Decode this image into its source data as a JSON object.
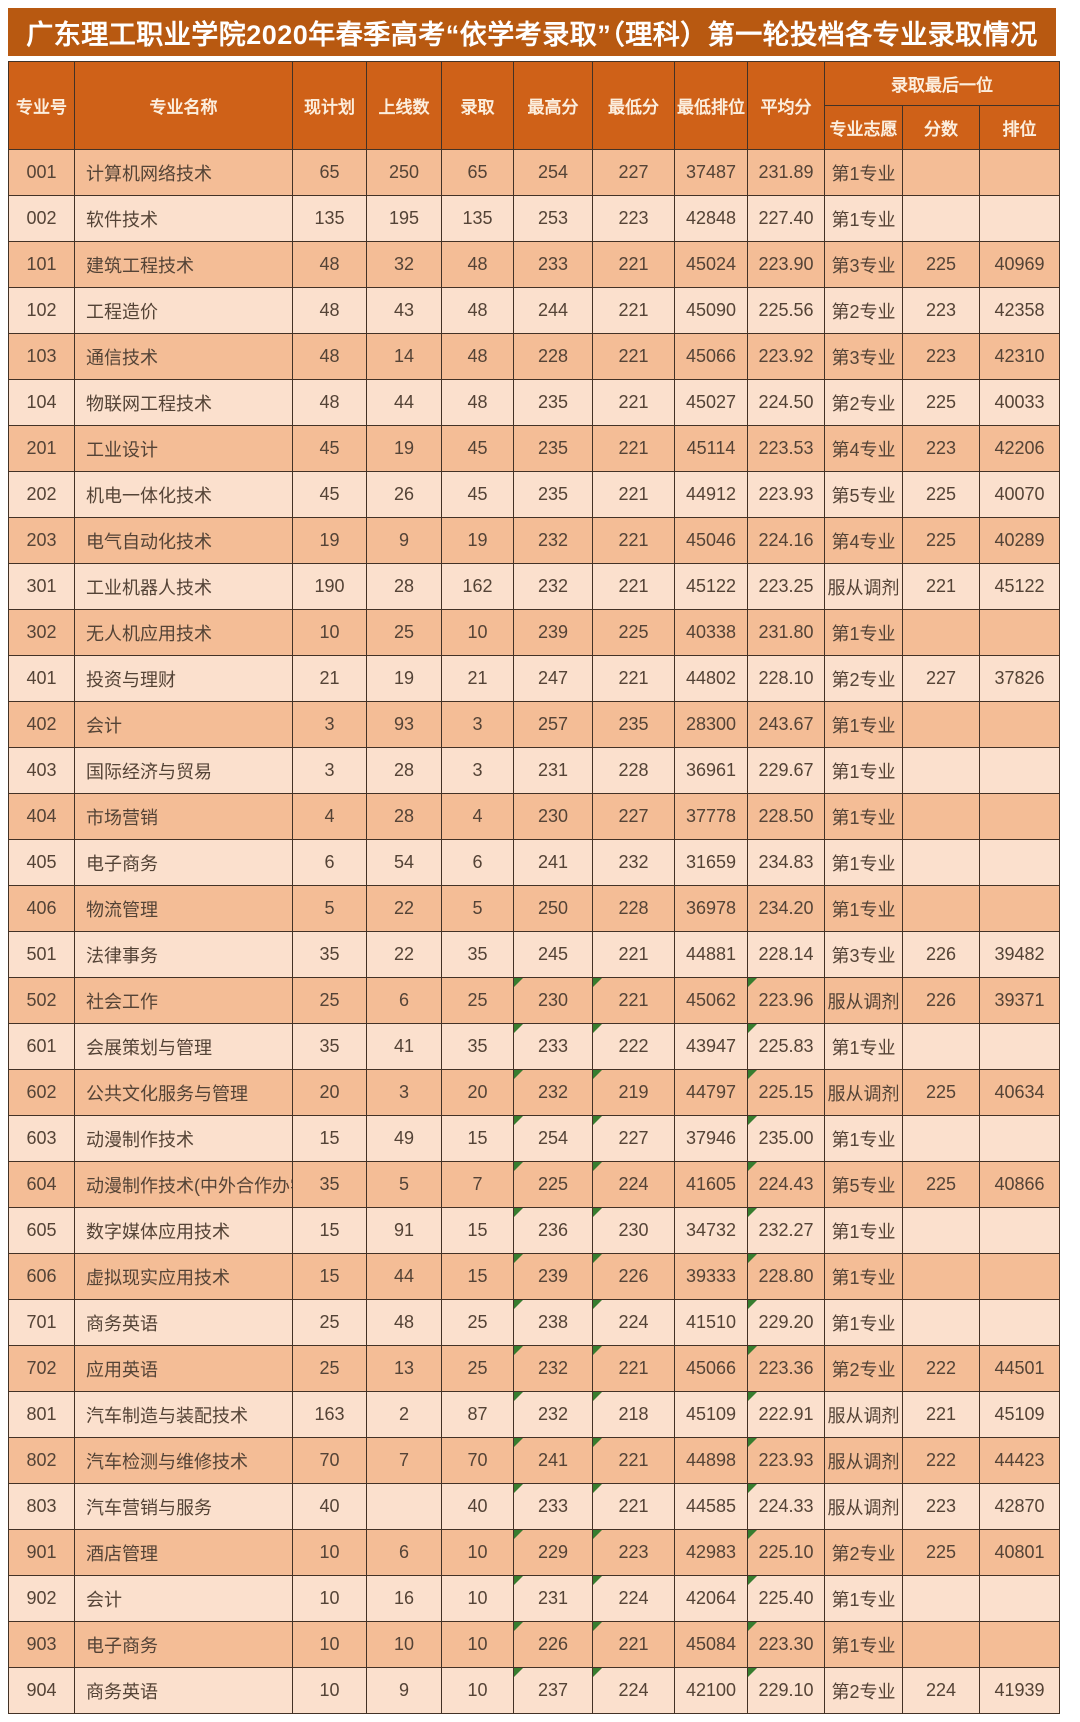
{
  "title": "广东理工职业学院2020年春季高考“依学考录取”（理科）第一轮投档各专业录取情况",
  "colors": {
    "title_bg": "#b85911",
    "header_bg": "#cf6118",
    "header_text": "#fceedd",
    "row_dark": "#f4bd96",
    "row_light": "#fbe0cd",
    "border": "#433226",
    "cell_text": "#544336",
    "error_marker_green": "#377d2f"
  },
  "table": {
    "header_row1": [
      "专业号",
      "专业名称",
      "现计划",
      "上线数",
      "录取",
      "最高分",
      "最低分",
      "最低排位",
      "平均分"
    ],
    "group_header": "录取最后一位",
    "header_row2": [
      "专业志愿",
      "分数",
      "排位"
    ],
    "col_keys": [
      "major-code",
      "major-name",
      "planned",
      "above-line",
      "admitted",
      "max-score",
      "min-score",
      "min-rank",
      "avg-score",
      "last-preference",
      "last-score",
      "last-rank"
    ],
    "marker_cols": [
      5,
      6,
      8
    ],
    "rows": [
      {
        "c": [
          "001",
          "计算机网络技术",
          "65",
          "250",
          "65",
          "254",
          "227",
          "37487",
          "231.89",
          "第1专业",
          "",
          ""
        ],
        "m": 0
      },
      {
        "c": [
          "002",
          "软件技术",
          "135",
          "195",
          "135",
          "253",
          "223",
          "42848",
          "227.40",
          "第1专业",
          "",
          ""
        ],
        "m": 0
      },
      {
        "c": [
          "101",
          "建筑工程技术",
          "48",
          "32",
          "48",
          "233",
          "221",
          "45024",
          "223.90",
          "第3专业",
          "225",
          "40969"
        ],
        "m": 0
      },
      {
        "c": [
          "102",
          "工程造价",
          "48",
          "43",
          "48",
          "244",
          "221",
          "45090",
          "225.56",
          "第2专业",
          "223",
          "42358"
        ],
        "m": 0
      },
      {
        "c": [
          "103",
          "通信技术",
          "48",
          "14",
          "48",
          "228",
          "221",
          "45066",
          "223.92",
          "第3专业",
          "223",
          "42310"
        ],
        "m": 0
      },
      {
        "c": [
          "104",
          "物联网工程技术",
          "48",
          "44",
          "48",
          "235",
          "221",
          "45027",
          "224.50",
          "第2专业",
          "225",
          "40033"
        ],
        "m": 0
      },
      {
        "c": [
          "201",
          "工业设计",
          "45",
          "19",
          "45",
          "235",
          "221",
          "45114",
          "223.53",
          "第4专业",
          "223",
          "42206"
        ],
        "m": 0
      },
      {
        "c": [
          "202",
          "机电一体化技术",
          "45",
          "26",
          "45",
          "235",
          "221",
          "44912",
          "223.93",
          "第5专业",
          "225",
          "40070"
        ],
        "m": 0
      },
      {
        "c": [
          "203",
          "电气自动化技术",
          "19",
          "9",
          "19",
          "232",
          "221",
          "45046",
          "224.16",
          "第4专业",
          "225",
          "40289"
        ],
        "m": 0
      },
      {
        "c": [
          "301",
          "工业机器人技术",
          "190",
          "28",
          "162",
          "232",
          "221",
          "45122",
          "223.25",
          "服从调剂",
          "221",
          "45122"
        ],
        "m": 0
      },
      {
        "c": [
          "302",
          "无人机应用技术",
          "10",
          "25",
          "10",
          "239",
          "225",
          "40338",
          "231.80",
          "第1专业",
          "",
          ""
        ],
        "m": 0
      },
      {
        "c": [
          "401",
          "投资与理财",
          "21",
          "19",
          "21",
          "247",
          "221",
          "44802",
          "228.10",
          "第2专业",
          "227",
          "37826"
        ],
        "m": 0
      },
      {
        "c": [
          "402",
          "会计",
          "3",
          "93",
          "3",
          "257",
          "235",
          "28300",
          "243.67",
          "第1专业",
          "",
          ""
        ],
        "m": 0
      },
      {
        "c": [
          "403",
          "国际经济与贸易",
          "3",
          "28",
          "3",
          "231",
          "228",
          "36961",
          "229.67",
          "第1专业",
          "",
          ""
        ],
        "m": 0
      },
      {
        "c": [
          "404",
          "市场营销",
          "4",
          "28",
          "4",
          "230",
          "227",
          "37778",
          "228.50",
          "第1专业",
          "",
          ""
        ],
        "m": 0
      },
      {
        "c": [
          "405",
          "电子商务",
          "6",
          "54",
          "6",
          "241",
          "232",
          "31659",
          "234.83",
          "第1专业",
          "",
          ""
        ],
        "m": 0
      },
      {
        "c": [
          "406",
          "物流管理",
          "5",
          "22",
          "5",
          "250",
          "228",
          "36978",
          "234.20",
          "第1专业",
          "",
          ""
        ],
        "m": 0
      },
      {
        "c": [
          "501",
          "法律事务",
          "35",
          "22",
          "35",
          "245",
          "221",
          "44881",
          "228.14",
          "第3专业",
          "226",
          "39482"
        ],
        "m": 0
      },
      {
        "c": [
          "502",
          "社会工作",
          "25",
          "6",
          "25",
          "230",
          "221",
          "45062",
          "223.96",
          "服从调剂",
          "226",
          "39371"
        ],
        "m": 1
      },
      {
        "c": [
          "601",
          "会展策划与管理",
          "35",
          "41",
          "35",
          "233",
          "222",
          "43947",
          "225.83",
          "第1专业",
          "",
          ""
        ],
        "m": 1
      },
      {
        "c": [
          "602",
          "公共文化服务与管理",
          "20",
          "3",
          "20",
          "232",
          "219",
          "44797",
          "225.15",
          "服从调剂",
          "225",
          "40634"
        ],
        "m": 1
      },
      {
        "c": [
          "603",
          "动漫制作技术",
          "15",
          "49",
          "15",
          "254",
          "227",
          "37946",
          "235.00",
          "第1专业",
          "",
          ""
        ],
        "m": 1
      },
      {
        "c": [
          "604",
          "动漫制作技术(中外合作办学)",
          "35",
          "5",
          "7",
          "225",
          "224",
          "41605",
          "224.43",
          "第5专业",
          "225",
          "40866"
        ],
        "m": 1
      },
      {
        "c": [
          "605",
          "数字媒体应用技术",
          "15",
          "91",
          "15",
          "236",
          "230",
          "34732",
          "232.27",
          "第1专业",
          "",
          ""
        ],
        "m": 1
      },
      {
        "c": [
          "606",
          "虚拟现实应用技术",
          "15",
          "44",
          "15",
          "239",
          "226",
          "39333",
          "228.80",
          "第1专业",
          "",
          ""
        ],
        "m": 1
      },
      {
        "c": [
          "701",
          "商务英语",
          "25",
          "48",
          "25",
          "238",
          "224",
          "41510",
          "229.20",
          "第1专业",
          "",
          ""
        ],
        "m": 1
      },
      {
        "c": [
          "702",
          "应用英语",
          "25",
          "13",
          "25",
          "232",
          "221",
          "45066",
          "223.36",
          "第2专业",
          "222",
          "44501"
        ],
        "m": 1
      },
      {
        "c": [
          "801",
          "汽车制造与装配技术",
          "163",
          "2",
          "87",
          "232",
          "218",
          "45109",
          "222.91",
          "服从调剂",
          "221",
          "45109"
        ],
        "m": 1
      },
      {
        "c": [
          "802",
          "汽车检测与维修技术",
          "70",
          "7",
          "70",
          "241",
          "221",
          "44898",
          "223.93",
          "服从调剂",
          "222",
          "44423"
        ],
        "m": 1
      },
      {
        "c": [
          "803",
          "汽车营销与服务",
          "40",
          "",
          "40",
          "233",
          "221",
          "44585",
          "224.33",
          "服从调剂",
          "223",
          "42870"
        ],
        "m": 1
      },
      {
        "c": [
          "901",
          "酒店管理",
          "10",
          "6",
          "10",
          "229",
          "223",
          "42983",
          "225.10",
          "第2专业",
          "225",
          "40801"
        ],
        "m": 1
      },
      {
        "c": [
          "902",
          "会计",
          "10",
          "16",
          "10",
          "231",
          "224",
          "42064",
          "225.40",
          "第1专业",
          "",
          ""
        ],
        "m": 1
      },
      {
        "c": [
          "903",
          "电子商务",
          "10",
          "10",
          "10",
          "226",
          "221",
          "45084",
          "223.30",
          "第1专业",
          "",
          ""
        ],
        "m": 1
      },
      {
        "c": [
          "904",
          "商务英语",
          "10",
          "9",
          "10",
          "237",
          "224",
          "42100",
          "229.10",
          "第2专业",
          "224",
          "41939"
        ],
        "m": 1
      }
    ]
  }
}
